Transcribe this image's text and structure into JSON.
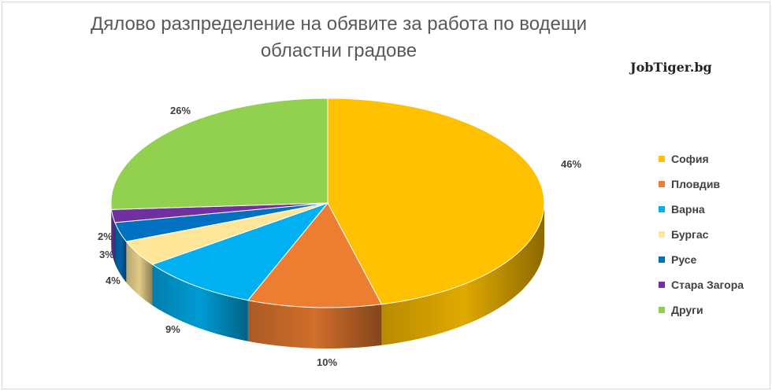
{
  "chart_data": {
    "type": "pie",
    "title": "Дялово разпределение на обявите за работа по водещи областни градове",
    "categories": [
      "София",
      "Пловдив",
      "Варна",
      "Бургас",
      "Русе",
      "Стара Загора",
      "Други"
    ],
    "values": [
      46,
      10,
      9,
      4,
      3,
      2,
      26
    ],
    "data_labels": [
      "46%",
      "10%",
      "9%",
      "4%",
      "3%",
      "2%",
      "26%"
    ],
    "colors": [
      "#FFC000",
      "#ED7D31",
      "#00B0F0",
      "#FFE699",
      "#0070C0",
      "#7030A0",
      "#92D050"
    ],
    "legend_position": "right",
    "style": "3d"
  },
  "brand": "JobTiger.bg"
}
